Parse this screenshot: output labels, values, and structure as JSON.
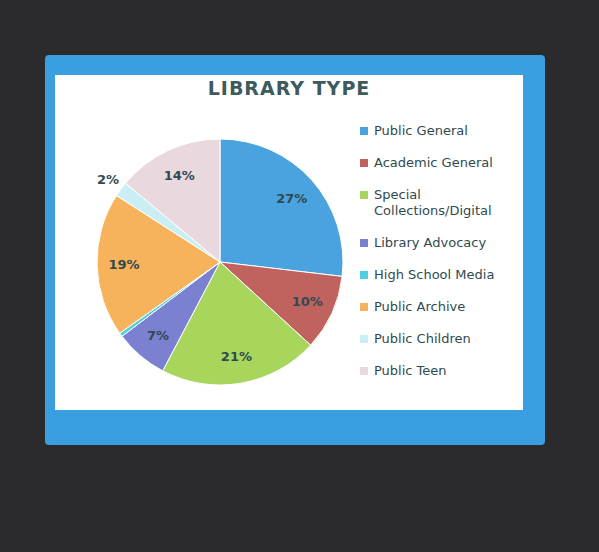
{
  "chart_data": {
    "type": "pie",
    "title": "LIBRARY TYPE",
    "categories": [
      "Public General",
      "Academic General",
      "Special Collections/Digital",
      "Library Advocacy",
      "High School Media",
      "Public Archive",
      "Public Children",
      "Public Teen"
    ],
    "values": [
      27,
      10,
      21,
      7,
      0.5,
      19,
      2,
      14
    ],
    "value_labels": [
      "27%",
      "10%",
      "21%",
      "7%",
      null,
      "19%",
      "2%",
      "14%"
    ],
    "colors": [
      "#4aa3df",
      "#c0635f",
      "#a8d65c",
      "#7b80d0",
      "#4dd0e1",
      "#f7b35c",
      "#c9eef4",
      "#e9d8de"
    ],
    "data_labels": true,
    "legend": "right"
  }
}
